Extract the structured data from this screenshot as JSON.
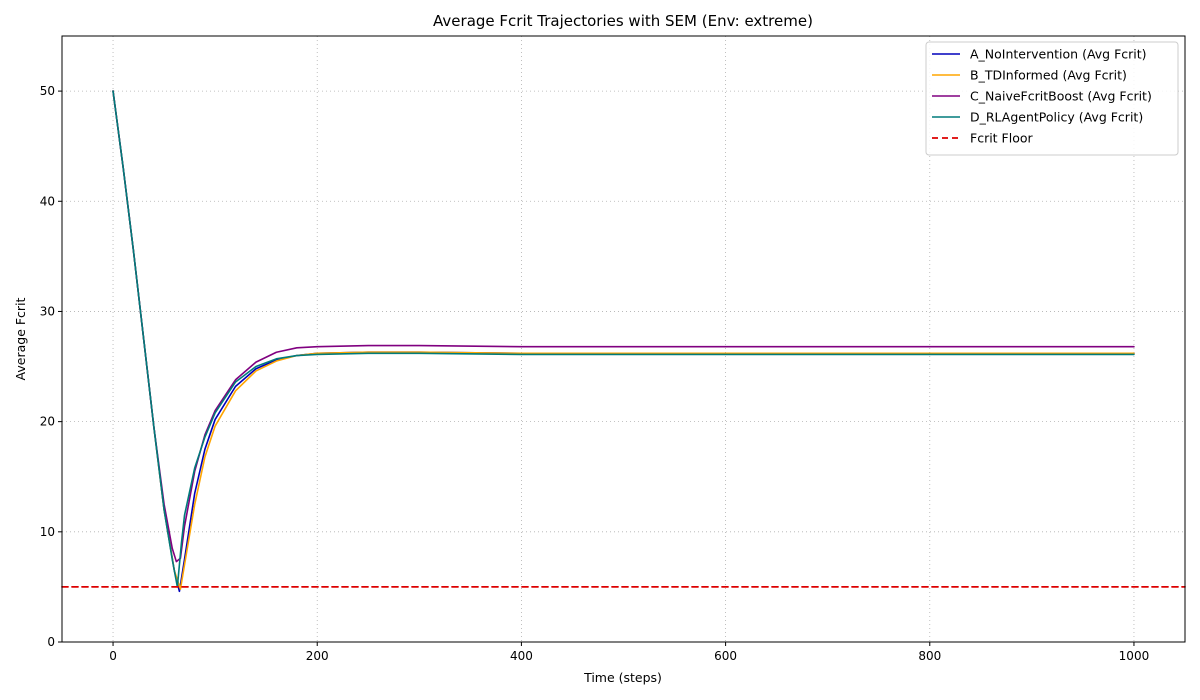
{
  "chart_data": {
    "type": "line",
    "title": "Average Fcrit Trajectories with SEM (Env: extreme)",
    "xlabel": "Time (steps)",
    "ylabel": "Average Fcrit",
    "xlim": [
      -50,
      1050
    ],
    "ylim": [
      0,
      55
    ],
    "xticks": [
      0,
      200,
      400,
      600,
      800,
      1000
    ],
    "yticks": [
      0,
      10,
      20,
      30,
      40,
      50
    ],
    "grid": true,
    "legend_position": "top-right",
    "series": [
      {
        "name": "A_NoIntervention (Avg Fcrit)",
        "color": "#0000bb",
        "x": [
          0,
          10,
          20,
          30,
          40,
          50,
          60,
          65,
          70,
          80,
          90,
          100,
          120,
          140,
          160,
          180,
          200,
          250,
          300,
          400,
          500,
          600,
          700,
          800,
          900,
          1000
        ],
        "y": [
          50,
          43,
          35.5,
          27.5,
          19.5,
          12,
          6.5,
          4.6,
          7.5,
          13.5,
          17.5,
          20.2,
          23.2,
          24.8,
          25.6,
          26.0,
          26.2,
          26.3,
          26.3,
          26.2,
          26.2,
          26.2,
          26.2,
          26.2,
          26.2,
          26.2
        ]
      },
      {
        "name": "B_TDInformed (Avg Fcrit)",
        "color": "#ffa500",
        "x": [
          0,
          10,
          20,
          30,
          40,
          50,
          60,
          66,
          70,
          80,
          90,
          100,
          120,
          140,
          160,
          180,
          200,
          250,
          300,
          400,
          500,
          600,
          700,
          800,
          900,
          1000
        ],
        "y": [
          50,
          43,
          35.5,
          27.5,
          19.5,
          12,
          6.5,
          4.8,
          7.0,
          12.5,
          16.8,
          19.6,
          22.8,
          24.6,
          25.5,
          26.0,
          26.2,
          26.3,
          26.3,
          26.2,
          26.2,
          26.2,
          26.2,
          26.2,
          26.2,
          26.2
        ]
      },
      {
        "name": "C_NaiveFcritBoost (Avg Fcrit)",
        "color": "#800080",
        "x": [
          0,
          10,
          20,
          30,
          40,
          50,
          58,
          62,
          66,
          70,
          80,
          90,
          100,
          120,
          140,
          160,
          180,
          200,
          250,
          300,
          400,
          500,
          600,
          700,
          800,
          900,
          1000
        ],
        "y": [
          50,
          43,
          35.5,
          27.5,
          19.5,
          12.5,
          8.5,
          7.3,
          7.6,
          10.5,
          15.5,
          18.8,
          21.0,
          23.8,
          25.4,
          26.3,
          26.7,
          26.8,
          26.9,
          26.9,
          26.8,
          26.8,
          26.8,
          26.8,
          26.8,
          26.8,
          26.8
        ]
      },
      {
        "name": "D_RLAgentPolicy (Avg Fcrit)",
        "color": "#007b7b",
        "x": [
          0,
          10,
          20,
          30,
          40,
          50,
          58,
          63,
          67,
          70,
          80,
          90,
          100,
          120,
          140,
          160,
          180,
          200,
          250,
          300,
          400,
          500,
          600,
          700,
          800,
          900,
          1000
        ],
        "y": [
          50,
          43,
          35.5,
          27.5,
          19.5,
          12,
          7.5,
          5.0,
          9.0,
          11.5,
          15.8,
          18.6,
          20.8,
          23.6,
          25.0,
          25.7,
          26.0,
          26.1,
          26.2,
          26.2,
          26.1,
          26.1,
          26.1,
          26.1,
          26.1,
          26.1,
          26.1
        ]
      },
      {
        "name": "Fcrit Floor",
        "color": "#dd0000",
        "style": "dashed",
        "x": [
          -50,
          1050
        ],
        "y": [
          5,
          5
        ]
      }
    ]
  }
}
